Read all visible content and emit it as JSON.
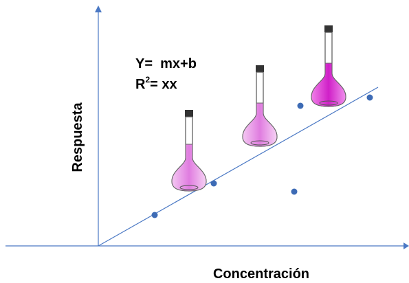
{
  "equation": {
    "line1": "Y=  mx+b",
    "line2_base": "R",
    "line2_sup": "2",
    "line2_rest": "= xx"
  },
  "axes": {
    "x_label": "Concentración",
    "y_label": "Respuesta"
  }
}
